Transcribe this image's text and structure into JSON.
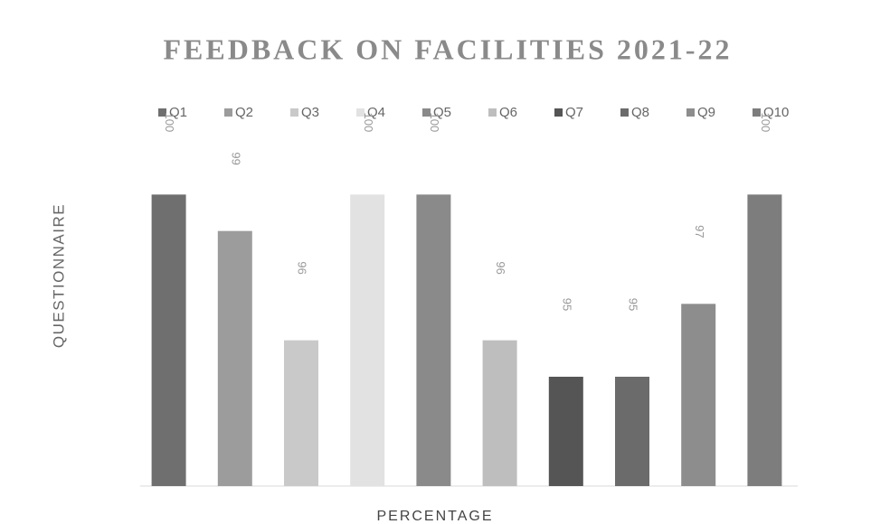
{
  "chart_data": {
    "type": "bar",
    "title": "FEEDBACK ON FACILITIES 2021-22",
    "x_label": "PERCENTAGE",
    "y_label": "QUESTIONNAIRE",
    "categories": [
      null
    ],
    "ylim": [
      92,
      101
    ],
    "legend": "top",
    "series": [
      {
        "name": "Q1",
        "color": "#6f6f6f",
        "values": [
          100
        ]
      },
      {
        "name": "Q2",
        "color": "#9c9c9c",
        "values": [
          99
        ]
      },
      {
        "name": "Q3",
        "color": "#c9c9c9",
        "values": [
          96
        ]
      },
      {
        "name": "Q4",
        "color": "#e2e2e2",
        "values": [
          100
        ]
      },
      {
        "name": "Q5",
        "color": "#8a8a8a",
        "values": [
          100
        ]
      },
      {
        "name": "Q6",
        "color": "#bebebe",
        "values": [
          96
        ]
      },
      {
        "name": "Q7",
        "color": "#555555",
        "values": [
          95
        ]
      },
      {
        "name": "Q8",
        "color": "#6b6b6b",
        "values": [
          95
        ]
      },
      {
        "name": "Q9",
        "color": "#8d8d8d",
        "values": [
          97
        ]
      },
      {
        "name": "Q10",
        "color": "#7d7d7d",
        "values": [
          100
        ]
      }
    ]
  }
}
